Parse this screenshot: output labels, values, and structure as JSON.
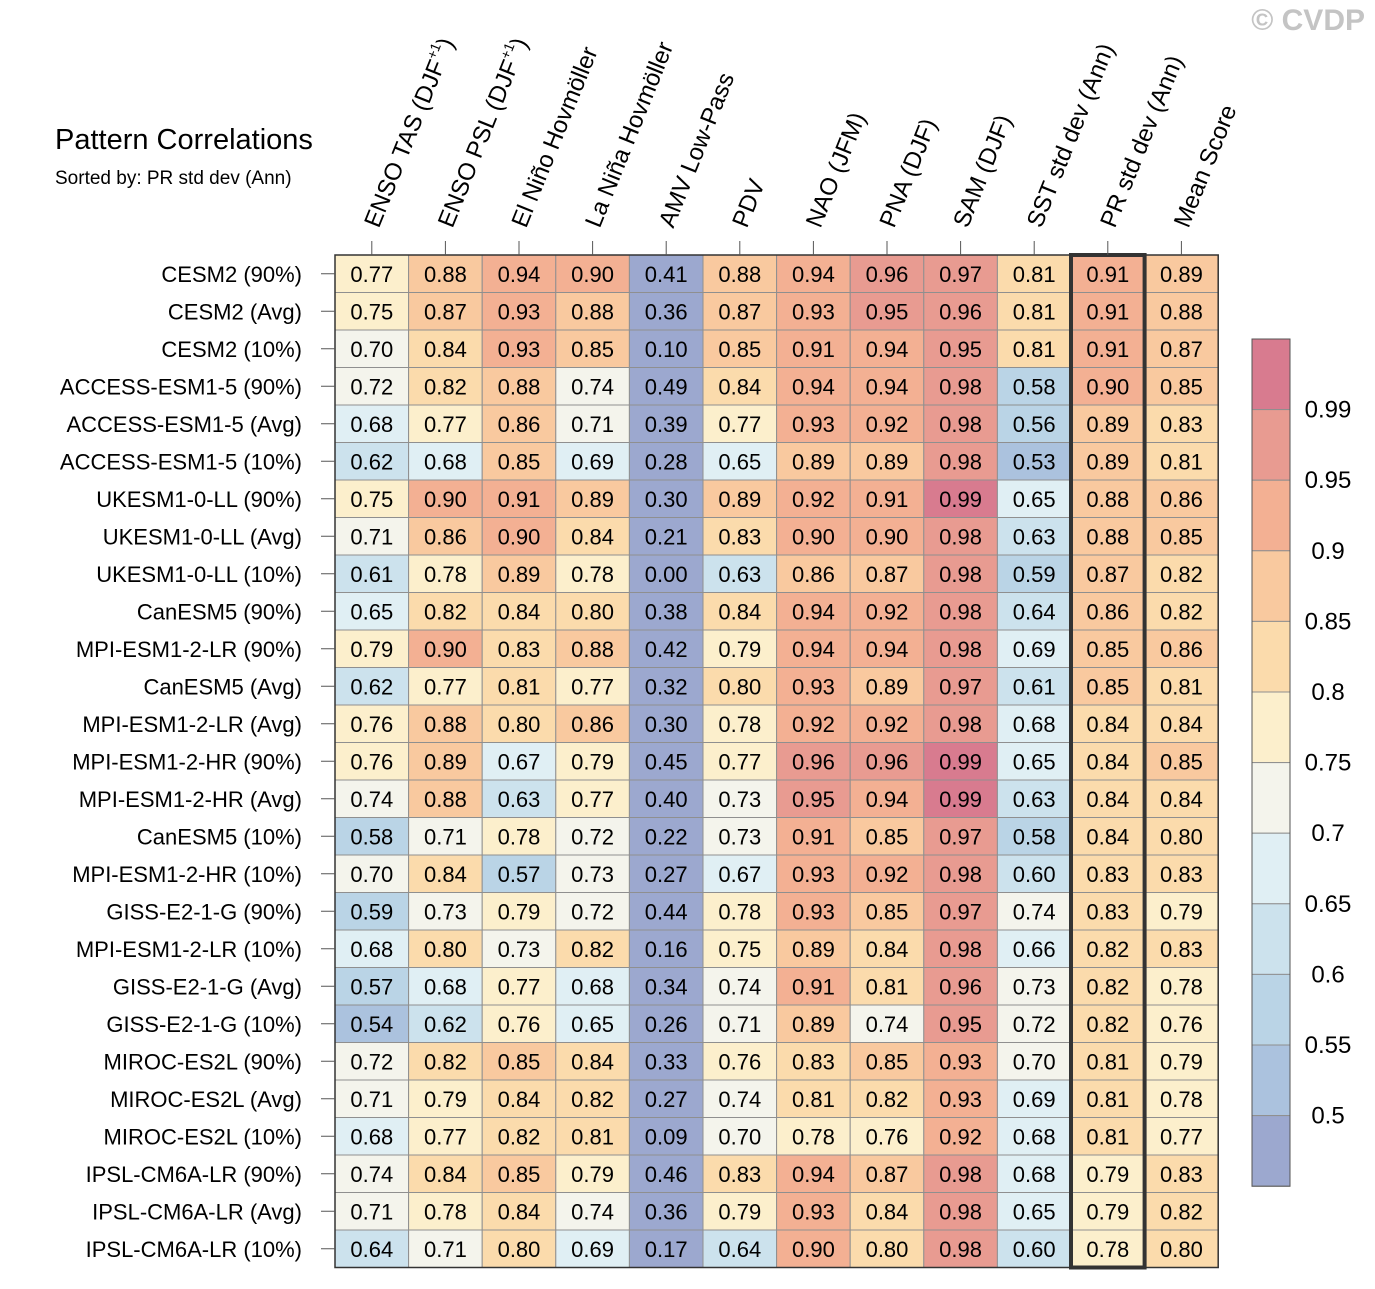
{
  "watermark": "© CVDP",
  "chart_data": {
    "type": "heatmap",
    "title": "Pattern Correlations",
    "subtitle": "Sorted by: PR std dev (Ann)",
    "columns": [
      "ENSO TAS (DJF",
      "ENSO PSL (DJF",
      "El Niño Hovmöller",
      "La Niña Hovmöller",
      "AMV Low-Pass",
      "PDV",
      "NAO (JFM)",
      "PNA (DJF)",
      "SAM (DJF)",
      "SST std dev (Ann)",
      "PR std dev (Ann)",
      "Mean Score"
    ],
    "column_superscripts": [
      "+1",
      "+1",
      "",
      "",
      "",
      "",
      "",
      "",
      "",
      "",
      "",
      ""
    ],
    "highlighted_column": "PR std dev (Ann)",
    "rows": [
      "CESM2 (90%)",
      "CESM2 (Avg)",
      "CESM2 (10%)",
      "ACCESS-ESM1-5 (90%)",
      "ACCESS-ESM1-5 (Avg)",
      "ACCESS-ESM1-5 (10%)",
      "UKESM1-0-LL (90%)",
      "UKESM1-0-LL (Avg)",
      "UKESM1-0-LL (10%)",
      "CanESM5 (90%)",
      "MPI-ESM1-2-LR (90%)",
      "CanESM5 (Avg)",
      "MPI-ESM1-2-LR (Avg)",
      "MPI-ESM1-2-HR (90%)",
      "MPI-ESM1-2-HR (Avg)",
      "CanESM5 (10%)",
      "MPI-ESM1-2-HR (10%)",
      "GISS-E2-1-G (90%)",
      "MPI-ESM1-2-LR (10%)",
      "GISS-E2-1-G (Avg)",
      "GISS-E2-1-G (10%)",
      "MIROC-ES2L (90%)",
      "MIROC-ES2L (Avg)",
      "MIROC-ES2L (10%)",
      "IPSL-CM6A-LR (90%)",
      "IPSL-CM6A-LR (Avg)",
      "IPSL-CM6A-LR (10%)"
    ],
    "values": [
      [
        "0.77",
        "0.88",
        "0.94",
        "0.90",
        "0.41",
        "0.88",
        "0.94",
        "0.96",
        "0.97",
        "0.81",
        "0.91",
        "0.89"
      ],
      [
        "0.75",
        "0.87",
        "0.93",
        "0.88",
        "0.36",
        "0.87",
        "0.93",
        "0.95",
        "0.96",
        "0.81",
        "0.91",
        "0.88"
      ],
      [
        "0.70",
        "0.84",
        "0.93",
        "0.85",
        "0.10",
        "0.85",
        "0.91",
        "0.94",
        "0.95",
        "0.81",
        "0.91",
        "0.87"
      ],
      [
        "0.72",
        "0.82",
        "0.88",
        "0.74",
        "0.49",
        "0.84",
        "0.94",
        "0.94",
        "0.98",
        "0.58",
        "0.90",
        "0.85"
      ],
      [
        "0.68",
        "0.77",
        "0.86",
        "0.71",
        "0.39",
        "0.77",
        "0.93",
        "0.92",
        "0.98",
        "0.56",
        "0.89",
        "0.83"
      ],
      [
        "0.62",
        "0.68",
        "0.85",
        "0.69",
        "0.28",
        "0.65",
        "0.89",
        "0.89",
        "0.98",
        "0.53",
        "0.89",
        "0.81"
      ],
      [
        "0.75",
        "0.90",
        "0.91",
        "0.89",
        "0.30",
        "0.89",
        "0.92",
        "0.91",
        "0.99",
        "0.65",
        "0.88",
        "0.86"
      ],
      [
        "0.71",
        "0.86",
        "0.90",
        "0.84",
        "0.21",
        "0.83",
        "0.90",
        "0.90",
        "0.98",
        "0.63",
        "0.88",
        "0.85"
      ],
      [
        "0.61",
        "0.78",
        "0.89",
        "0.78",
        "0.00",
        "0.63",
        "0.86",
        "0.87",
        "0.98",
        "0.59",
        "0.87",
        "0.82"
      ],
      [
        "0.65",
        "0.82",
        "0.84",
        "0.80",
        "0.38",
        "0.84",
        "0.94",
        "0.92",
        "0.98",
        "0.64",
        "0.86",
        "0.82"
      ],
      [
        "0.79",
        "0.90",
        "0.83",
        "0.88",
        "0.42",
        "0.79",
        "0.94",
        "0.94",
        "0.98",
        "0.69",
        "0.85",
        "0.86"
      ],
      [
        "0.62",
        "0.77",
        "0.81",
        "0.77",
        "0.32",
        "0.80",
        "0.93",
        "0.89",
        "0.97",
        "0.61",
        "0.85",
        "0.81"
      ],
      [
        "0.76",
        "0.88",
        "0.80",
        "0.86",
        "0.30",
        "0.78",
        "0.92",
        "0.92",
        "0.98",
        "0.68",
        "0.84",
        "0.84"
      ],
      [
        "0.76",
        "0.89",
        "0.67",
        "0.79",
        "0.45",
        "0.77",
        "0.96",
        "0.96",
        "0.99",
        "0.65",
        "0.84",
        "0.85"
      ],
      [
        "0.74",
        "0.88",
        "0.63",
        "0.77",
        "0.40",
        "0.73",
        "0.95",
        "0.94",
        "0.99",
        "0.63",
        "0.84",
        "0.84"
      ],
      [
        "0.58",
        "0.71",
        "0.78",
        "0.72",
        "0.22",
        "0.73",
        "0.91",
        "0.85",
        "0.97",
        "0.58",
        "0.84",
        "0.80"
      ],
      [
        "0.70",
        "0.84",
        "0.57",
        "0.73",
        "0.27",
        "0.67",
        "0.93",
        "0.92",
        "0.98",
        "0.60",
        "0.83",
        "0.83"
      ],
      [
        "0.59",
        "0.73",
        "0.79",
        "0.72",
        "0.44",
        "0.78",
        "0.93",
        "0.85",
        "0.97",
        "0.74",
        "0.83",
        "0.79"
      ],
      [
        "0.68",
        "0.80",
        "0.73",
        "0.82",
        "0.16",
        "0.75",
        "0.89",
        "0.84",
        "0.98",
        "0.66",
        "0.82",
        "0.83"
      ],
      [
        "0.57",
        "0.68",
        "0.77",
        "0.68",
        "0.34",
        "0.74",
        "0.91",
        "0.81",
        "0.96",
        "0.73",
        "0.82",
        "0.78"
      ],
      [
        "0.54",
        "0.62",
        "0.76",
        "0.65",
        "0.26",
        "0.71",
        "0.89",
        "0.74",
        "0.95",
        "0.72",
        "0.82",
        "0.76"
      ],
      [
        "0.72",
        "0.82",
        "0.85",
        "0.84",
        "0.33",
        "0.76",
        "0.83",
        "0.85",
        "0.93",
        "0.70",
        "0.81",
        "0.79"
      ],
      [
        "0.71",
        "0.79",
        "0.84",
        "0.82",
        "0.27",
        "0.74",
        "0.81",
        "0.82",
        "0.93",
        "0.69",
        "0.81",
        "0.78"
      ],
      [
        "0.68",
        "0.77",
        "0.82",
        "0.81",
        "0.09",
        "0.70",
        "0.78",
        "0.76",
        "0.92",
        "0.68",
        "0.81",
        "0.77"
      ],
      [
        "0.74",
        "0.84",
        "0.85",
        "0.79",
        "0.46",
        "0.83",
        "0.94",
        "0.87",
        "0.98",
        "0.68",
        "0.79",
        "0.83"
      ],
      [
        "0.71",
        "0.78",
        "0.84",
        "0.74",
        "0.36",
        "0.79",
        "0.93",
        "0.84",
        "0.98",
        "0.65",
        "0.79",
        "0.82"
      ],
      [
        "0.64",
        "0.71",
        "0.80",
        "0.69",
        "0.17",
        "0.64",
        "0.90",
        "0.80",
        "0.98",
        "0.60",
        "0.78",
        "0.80"
      ]
    ],
    "colorbar": {
      "labels": [
        "0.99",
        "0.95",
        "0.9",
        "0.85",
        "0.8",
        "0.75",
        "0.7",
        "0.65",
        "0.6",
        "0.55",
        "0.5"
      ],
      "colors": [
        "#9ca8cf",
        "#abc2de",
        "#bad4e6",
        "#cce2ed",
        "#e0eff4",
        "#f4f4ec",
        "#fcefcc",
        "#fbdbac",
        "#f9c99f",
        "#f3b093",
        "#e89b91",
        "#d87b8f"
      ]
    }
  }
}
